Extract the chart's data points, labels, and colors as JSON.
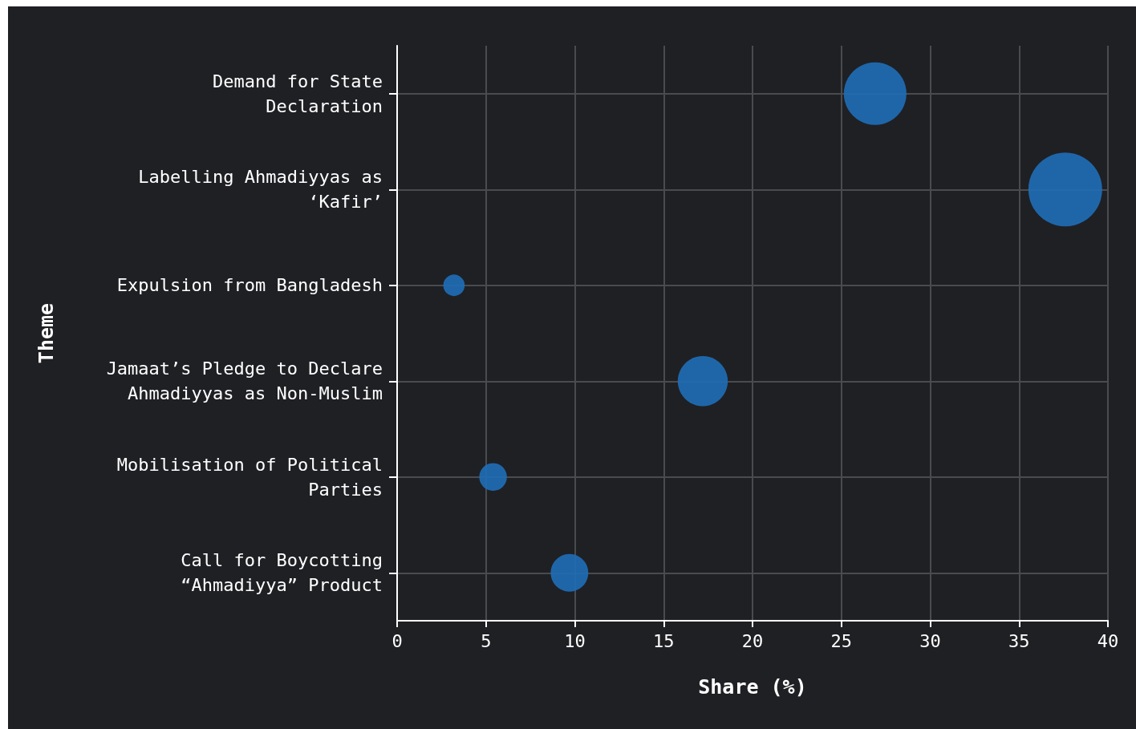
{
  "chart_data": {
    "type": "bubble",
    "orientation": "horizontal",
    "xlabel": "Share (%)",
    "ylabel": "Theme",
    "categories": [
      "Demand for State\nDeclaration",
      "Labelling Ahmadiyyas as\n‘Kafir’",
      "Expulsion from Bangladesh",
      "Jamaat’s Pledge to Declare\nAhmadiyyas as Non-Muslim",
      "Mobilisation of Political\nParties",
      "Call for Boycotting\n“Ahmadiyya” Product"
    ],
    "series": [
      {
        "color": "#1f6db5",
        "values": [
          26.9,
          37.6,
          3.2,
          17.2,
          5.4,
          9.7
        ],
        "sizes": [
          0.72,
          1,
          0.085,
          0.46,
          0.14,
          0.26
        ]
      }
    ],
    "xlim": [
      0,
      40
    ],
    "xticks": [
      0,
      5,
      10,
      15,
      20,
      25,
      30,
      35,
      40
    ],
    "grid": true
  }
}
